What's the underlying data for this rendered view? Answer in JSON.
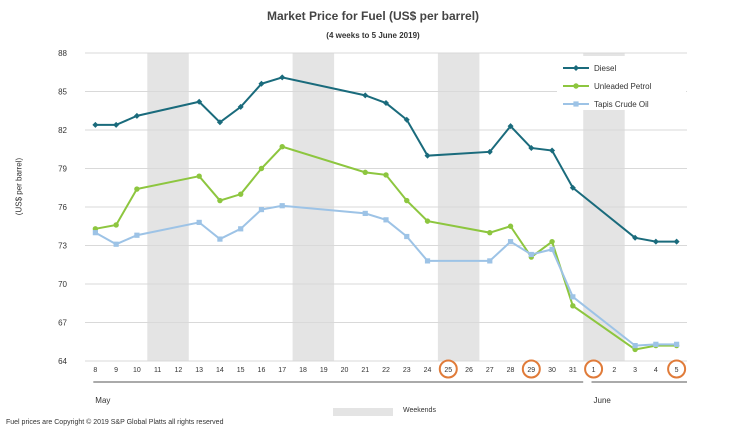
{
  "chart_data": {
    "type": "line",
    "title": "Market Price for Fuel (US$ per barrel)",
    "subtitle": "(4 weeks to 5 June 2019)",
    "ylabel": "(US$ per barrel)",
    "ylim": [
      64,
      88
    ],
    "yticks": [
      64,
      67,
      70,
      73,
      76,
      79,
      82,
      85,
      88
    ],
    "grid": true,
    "legend_position": "top-right",
    "days": [
      8,
      9,
      10,
      11,
      12,
      13,
      14,
      15,
      16,
      17,
      18,
      19,
      20,
      21,
      22,
      23,
      24,
      25,
      26,
      27,
      28,
      29,
      30,
      31,
      1,
      2,
      3,
      4,
      5
    ],
    "months": [
      {
        "label": "May",
        "first_index": 0,
        "last_index": 23
      },
      {
        "label": "June",
        "first_index": 24,
        "last_index": 28
      }
    ],
    "weekend_bands": [
      [
        11,
        12
      ],
      [
        18,
        19
      ],
      [
        25,
        26
      ],
      [
        1,
        2
      ]
    ],
    "circled_days": [
      25,
      29,
      1,
      5
    ],
    "series": [
      {
        "name": "Diesel",
        "color": "#1a6b7c",
        "marker": "diamond",
        "points": [
          [
            8,
            82.4
          ],
          [
            9,
            82.4
          ],
          [
            10,
            83.1
          ],
          [
            13,
            84.2
          ],
          [
            14,
            82.6
          ],
          [
            15,
            83.8
          ],
          [
            16,
            85.6
          ],
          [
            17,
            86.1
          ],
          [
            21,
            84.7
          ],
          [
            22,
            84.1
          ],
          [
            23,
            82.8
          ],
          [
            24,
            80.0
          ],
          [
            27,
            80.3
          ],
          [
            28,
            82.3
          ],
          [
            29,
            80.6
          ],
          [
            30,
            80.4
          ],
          [
            31,
            77.5
          ],
          [
            3,
            73.6
          ],
          [
            4,
            73.3
          ],
          [
            5,
            73.3
          ]
        ]
      },
      {
        "name": "Unleaded Petrol",
        "color": "#8dc63f",
        "marker": "circle",
        "points": [
          [
            8,
            74.3
          ],
          [
            9,
            74.6
          ],
          [
            10,
            77.4
          ],
          [
            13,
            78.4
          ],
          [
            14,
            76.5
          ],
          [
            15,
            77.0
          ],
          [
            16,
            79.0
          ],
          [
            17,
            80.7
          ],
          [
            21,
            78.7
          ],
          [
            22,
            78.5
          ],
          [
            23,
            76.5
          ],
          [
            24,
            74.9
          ],
          [
            27,
            74.0
          ],
          [
            28,
            74.5
          ],
          [
            29,
            72.1
          ],
          [
            30,
            73.3
          ],
          [
            31,
            68.3
          ],
          [
            3,
            64.9
          ],
          [
            4,
            65.2
          ],
          [
            5,
            65.2
          ]
        ]
      },
      {
        "name": "Tapis Crude Oil",
        "color": "#9dc3e6",
        "marker": "square",
        "points": [
          [
            8,
            74.0
          ],
          [
            9,
            73.1
          ],
          [
            10,
            73.8
          ],
          [
            13,
            74.8
          ],
          [
            14,
            73.5
          ],
          [
            15,
            74.3
          ],
          [
            16,
            75.8
          ],
          [
            17,
            76.1
          ],
          [
            21,
            75.5
          ],
          [
            22,
            75.0
          ],
          [
            23,
            73.7
          ],
          [
            24,
            71.8
          ],
          [
            27,
            71.8
          ],
          [
            28,
            73.3
          ],
          [
            29,
            72.3
          ],
          [
            30,
            72.7
          ],
          [
            31,
            69.0
          ],
          [
            3,
            65.2
          ],
          [
            4,
            65.3
          ],
          [
            5,
            65.3
          ]
        ]
      }
    ]
  },
  "legend": {
    "weekends_label": "Weekends"
  },
  "footer": {
    "copyright": "Fuel prices are Copyright © 2019 S&P Global Platts all rights reserved"
  },
  "colors": {
    "weekend_band": "#e4e4e4",
    "gridline": "#d9d9d9",
    "circle_highlight": "#e07b39"
  }
}
